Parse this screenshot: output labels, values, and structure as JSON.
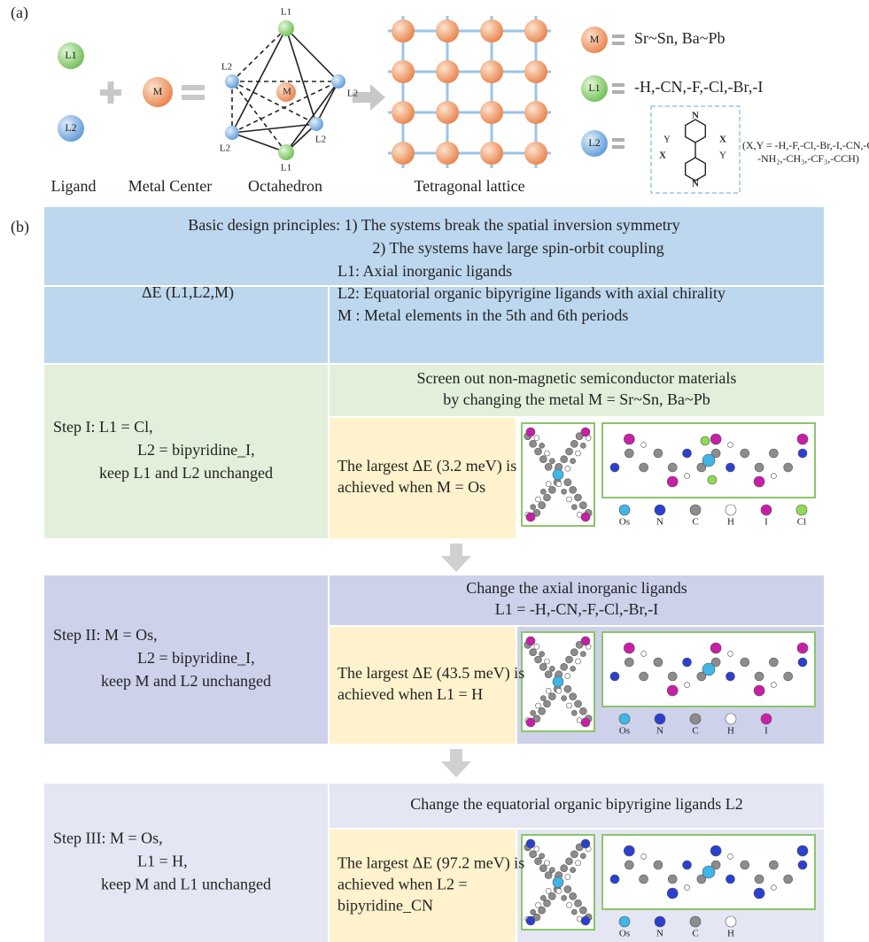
{
  "panel_a": {
    "label": "(a)",
    "ligand_l1": "L1",
    "ligand_l2": "L2",
    "metal": "M",
    "octahedron_labels": {
      "top": "L1",
      "upper_left": "L2",
      "center": "M",
      "right": "L2",
      "left": "L2",
      "lower_right": "L2",
      "bottom": "L1"
    },
    "captions": [
      "Ligand",
      "Metal Center",
      "Octahedron",
      "Tetragonal lattice"
    ],
    "legend": [
      {
        "symbol": "M",
        "text": "Sr~Sn, Ba~Pb"
      },
      {
        "symbol": "L1",
        "text": "-H,-CN,-F,-Cl,-Br,-I"
      },
      {
        "symbol": "L2"
      }
    ],
    "structure_labels": [
      "N",
      "Y",
      "X",
      "X",
      "Y",
      "N"
    ],
    "l2_substituents": [
      "(X,Y = -H,-F,-Cl,-Br,-I,-CN,-OH,",
      "-NH₂,-CH₃,-CF₃,-CCH)"
    ]
  },
  "panel_b": {
    "label": "(b)",
    "principles": [
      "Basic design principles: 1) The systems break the spatial inversion symmetry",
      "2) The systems have  large spin-orbit coupling"
    ],
    "objective": "ΔE (L1,L2,M)",
    "definitions": [
      "L1: Axial inorganic ligands",
      "L2: Equatorial organic bipyrigine ligands with axial chirality",
      "M : Metal elements in the 5th and 6th periods"
    ],
    "steps": [
      {
        "condition": [
          "Step I: L1 = Cl,",
          "L2 = bipyridine_I,",
          "keep L1 and L2 unchanged"
        ],
        "task": [
          "Screen out non-magnetic semiconductor materials",
          "by changing the metal M = Sr~Sn, Ba~Pb"
        ],
        "result": [
          "The largest ΔE (3.2 meV) is",
          "achieved when M = Os"
        ],
        "atom_legend": [
          "Os",
          "N",
          "C",
          "H",
          "I",
          "Cl"
        ]
      },
      {
        "condition": [
          "Step II: M = Os,",
          "L2 = bipyridine_I,",
          "keep M and L2 unchanged"
        ],
        "task": [
          "Change the axial inorganic ligands",
          "L1 = -H,-CN,-F,-Cl,-Br,-I"
        ],
        "result": [
          "The largest ΔE (43.5 meV)  is",
          "achieved when L1 = H"
        ],
        "atom_legend": [
          "Os",
          "N",
          "C",
          "H",
          "I"
        ]
      },
      {
        "condition": [
          "Step III: M  = Os,",
          "L1 = H,",
          "keep M and L1 unchanged"
        ],
        "task": [
          "Change the equatorial organic bipyrigine ligands L2"
        ],
        "result": [
          "The largest ΔE (97.2 meV) is",
          "achieved when L2 =",
          "bipyridine_CN"
        ],
        "atom_legend": [
          "Os",
          "N",
          "C",
          "H"
        ]
      }
    ]
  }
}
